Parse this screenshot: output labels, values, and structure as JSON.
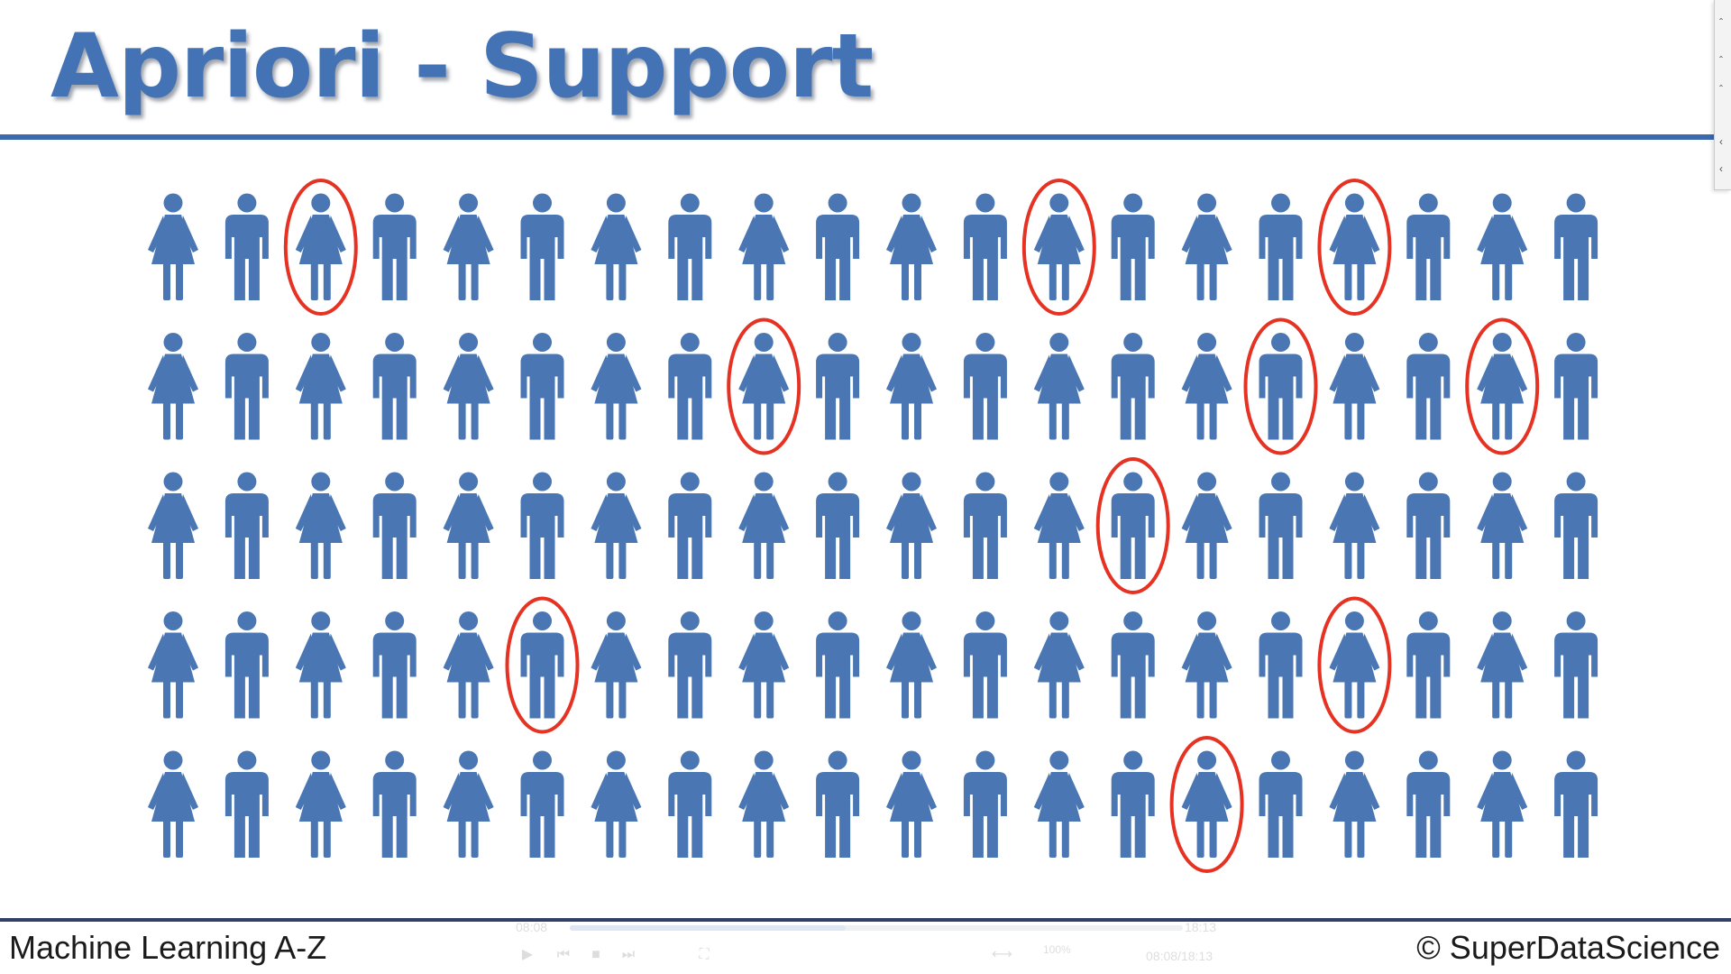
{
  "slide": {
    "title": "Apriori - Support",
    "footer_left": "Machine Learning A-Z",
    "footer_right": "© SuperDataScience"
  },
  "people_grid": {
    "rows": 5,
    "columns": 20,
    "person_color": "#4a77b3",
    "circle_color": "#e53222",
    "pattern": [
      [
        "woman",
        "man",
        "woman",
        "man",
        "woman",
        "man",
        "woman",
        "man",
        "woman",
        "man",
        "woman",
        "man",
        "woman",
        "man",
        "woman",
        "man",
        "woman",
        "man",
        "woman",
        "man"
      ],
      [
        "woman",
        "man",
        "woman",
        "man",
        "woman",
        "man",
        "woman",
        "man",
        "woman",
        "man",
        "woman",
        "man",
        "woman",
        "man",
        "woman",
        "man",
        "woman",
        "man",
        "woman",
        "man"
      ],
      [
        "woman",
        "man",
        "woman",
        "man",
        "woman",
        "man",
        "woman",
        "man",
        "woman",
        "man",
        "woman",
        "man",
        "woman",
        "man",
        "woman",
        "man",
        "woman",
        "man",
        "woman",
        "man"
      ],
      [
        "woman",
        "man",
        "woman",
        "man",
        "woman",
        "man",
        "woman",
        "man",
        "woman",
        "man",
        "woman",
        "man",
        "woman",
        "man",
        "woman",
        "man",
        "woman",
        "man",
        "woman",
        "man"
      ],
      [
        "woman",
        "man",
        "woman",
        "man",
        "woman",
        "man",
        "woman",
        "man",
        "woman",
        "man",
        "woman",
        "man",
        "woman",
        "man",
        "woman",
        "man",
        "woman",
        "man",
        "woman",
        "man"
      ]
    ],
    "circled": [
      [
        0,
        2
      ],
      [
        0,
        12
      ],
      [
        0,
        16
      ],
      [
        1,
        8
      ],
      [
        1,
        15
      ],
      [
        1,
        18
      ],
      [
        2,
        13
      ],
      [
        3,
        5
      ],
      [
        3,
        16
      ],
      [
        4,
        14
      ]
    ]
  },
  "video_player": {
    "current_time": "08:08",
    "total_time": "18:13",
    "time_readout": "08:08/18:13",
    "progress": 0.45,
    "volume_label": "100%",
    "controls": [
      "play-icon",
      "skip-back-icon",
      "stop-icon",
      "skip-forward-icon",
      "fullscreen-icon"
    ]
  }
}
